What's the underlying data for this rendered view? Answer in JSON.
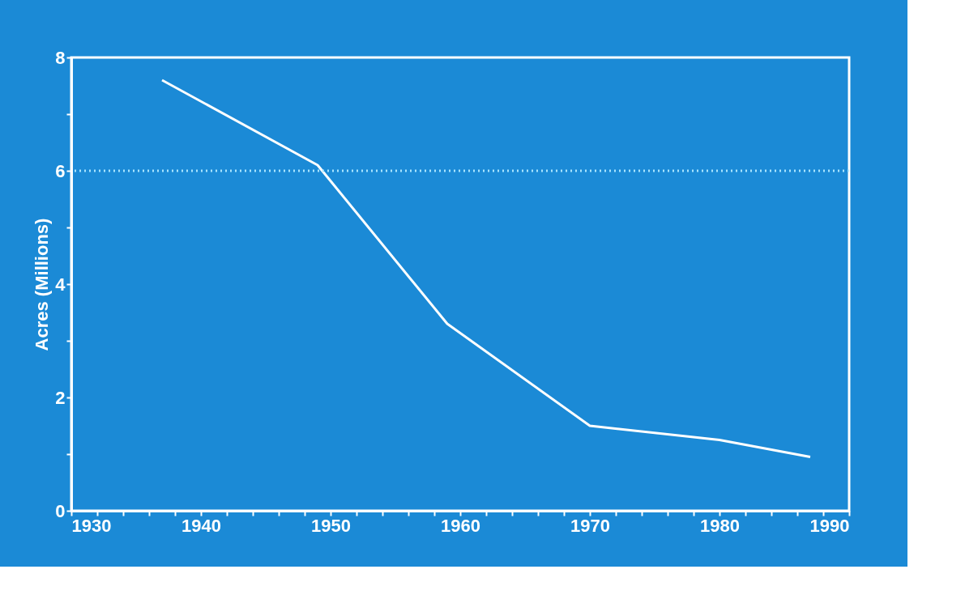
{
  "chart_data": {
    "type": "line",
    "ylabel": "Acres (Millions)",
    "x": [
      1937,
      1949,
      1959,
      1970,
      1980,
      1987
    ],
    "series": [
      {
        "color": "#ffffff",
        "values": [
          7.6,
          6.1,
          3.3,
          1.5,
          1.25,
          0.95
        ]
      }
    ],
    "xlim": [
      1930,
      1990
    ],
    "ylim": [
      0,
      8
    ],
    "xticks": [
      1930,
      {
        "value": 1932,
        "label": null
      },
      {
        "value": 1934,
        "label": null
      },
      {
        "value": 1936,
        "label": null
      },
      {
        "value": 1938,
        "label": null
      },
      1940,
      {
        "value": 1942,
        "label": null
      },
      {
        "value": 1944,
        "label": null
      },
      {
        "value": 1946,
        "label": null
      },
      {
        "value": 1948,
        "label": null
      },
      1950,
      {
        "value": 1952,
        "label": null
      },
      {
        "value": 1954,
        "label": null
      },
      {
        "value": 1956,
        "label": null
      },
      {
        "value": 1958,
        "label": null
      },
      1960,
      {
        "value": 1962,
        "label": null
      },
      {
        "value": 1964,
        "label": null
      },
      {
        "value": 1966,
        "label": null
      },
      {
        "value": 1968,
        "label": null
      },
      1970,
      {
        "value": 1972,
        "label": null
      },
      {
        "value": 1974,
        "label": null
      },
      {
        "value": 1976,
        "label": null
      },
      {
        "value": 1978,
        "label": null
      },
      1980,
      {
        "value": 1982,
        "label": null
      },
      {
        "value": 1984,
        "label": null
      },
      {
        "value": 1986,
        "label": null
      },
      {
        "value": 1988,
        "label": null
      },
      1990
    ],
    "yticks": [
      0,
      {
        "value": 1,
        "label": null
      },
      2,
      {
        "value": 3,
        "label": null
      },
      4,
      {
        "value": 5,
        "label": null
      },
      6,
      {
        "value": 7,
        "label": null
      },
      8
    ],
    "ref_lines": [
      {
        "axis": "y",
        "value": 6,
        "color": "#a8e4ff",
        "line_style": "dotted"
      }
    ],
    "grid": false,
    "marker": "none",
    "line_style": "solid"
  }
}
